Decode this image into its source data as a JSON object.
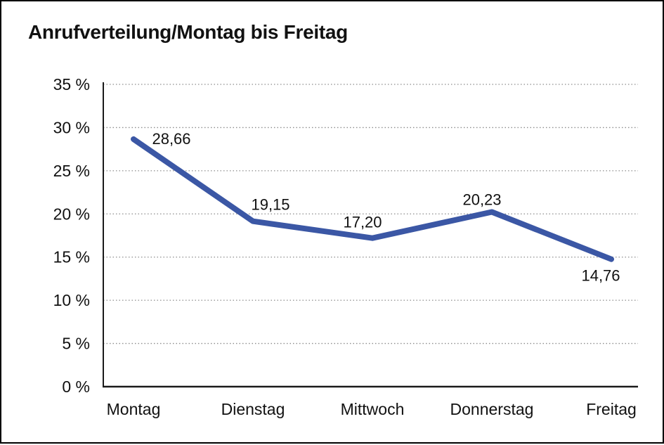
{
  "window": {
    "background_color": "#ffffff",
    "frame_border_color": "#000000"
  },
  "chart_data": {
    "type": "line",
    "title": "Anrufverteilung/Montag bis Freitag",
    "categories": [
      "Montag",
      "Dienstag",
      "Mittwoch",
      "Donnerstag",
      "Freitag"
    ],
    "values": [
      28.66,
      19.15,
      17.2,
      20.23,
      14.76
    ],
    "value_labels": [
      "28,66",
      "19,15",
      "17,20",
      "20,23",
      "14,76"
    ],
    "yticks": [
      0,
      5,
      10,
      15,
      20,
      25,
      30,
      35
    ],
    "ytick_labels": [
      "0 %",
      "5 %",
      "10 %",
      "15 %",
      "20 %",
      "25 %",
      "30 %",
      "35 %"
    ],
    "ylim": [
      0,
      35
    ],
    "xlabel": "",
    "ylabel": "",
    "grid": "horizontal-dotted",
    "legend": "none",
    "line_color": "#3B57A5",
    "grid_color": "#8c8c8c",
    "axis_color": "#1a1a1a",
    "text_color": "#111111"
  }
}
